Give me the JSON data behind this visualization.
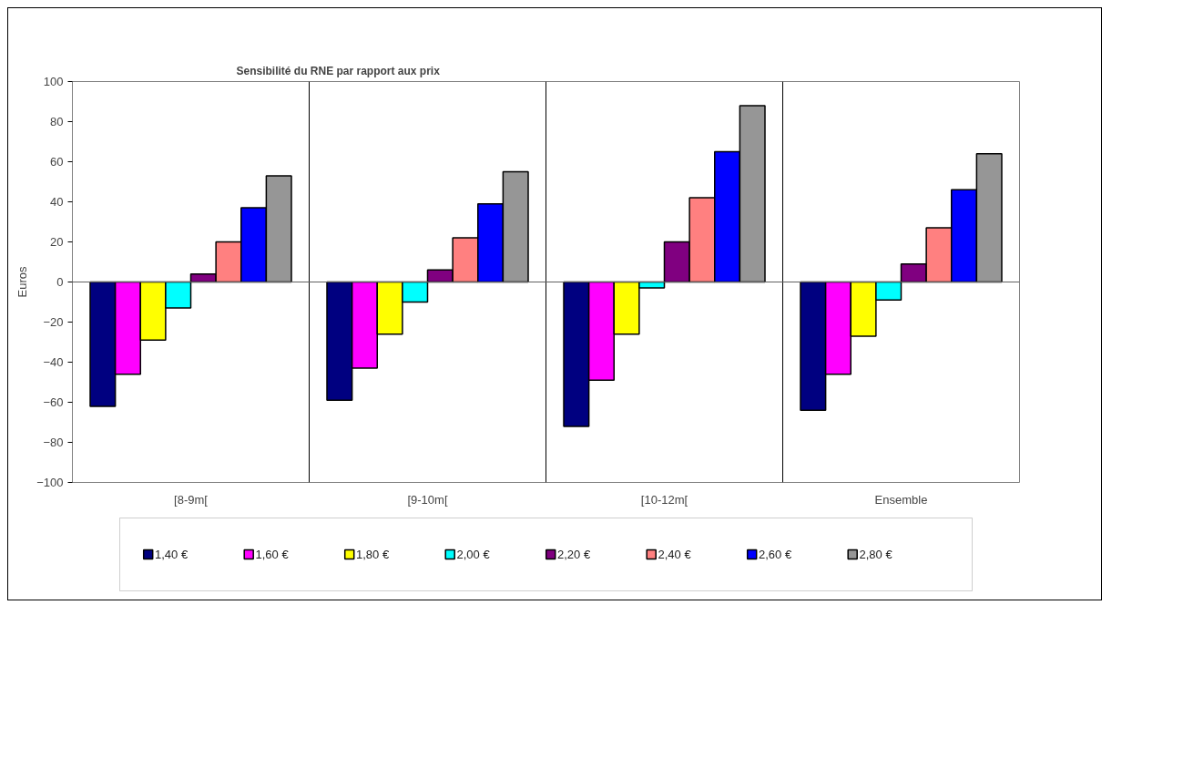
{
  "chart_data": {
    "type": "bar",
    "title": "Sensibilité du RNE par rapport aux prix",
    "ylabel": "Euros",
    "categories": [
      "[8-9m[",
      "[9-10m[",
      "[10-12m[",
      "Ensemble"
    ],
    "series": [
      {
        "name": "1,40 €",
        "color": "#000080",
        "values": [
          -62,
          -59,
          -72,
          -64
        ]
      },
      {
        "name": "1,60 €",
        "color": "#ff00ff",
        "values": [
          -46,
          -43,
          -49,
          -46
        ]
      },
      {
        "name": "1,80 €",
        "color": "#ffff00",
        "values": [
          -29,
          -26,
          -26,
          -27
        ]
      },
      {
        "name": "2,00 €",
        "color": "#00ffff",
        "values": [
          -13,
          -10,
          -3,
          -9
        ]
      },
      {
        "name": "2,20 €",
        "color": "#800080",
        "values": [
          4,
          6,
          20,
          9
        ]
      },
      {
        "name": "2,40 €",
        "color": "#ff8080",
        "values": [
          20,
          22,
          42,
          27
        ]
      },
      {
        "name": "2,60 €",
        "color": "#0000ff",
        "values": [
          37,
          39,
          65,
          46
        ]
      },
      {
        "name": "2,80 €",
        "color": "#969696",
        "values": [
          53,
          55,
          88,
          64
        ]
      }
    ],
    "ylim": [
      -100,
      100
    ],
    "yticks": [
      -100,
      -80,
      -60,
      -40,
      -20,
      0,
      20,
      40,
      60,
      80,
      100
    ],
    "grid": "x",
    "legend": "bottom"
  }
}
